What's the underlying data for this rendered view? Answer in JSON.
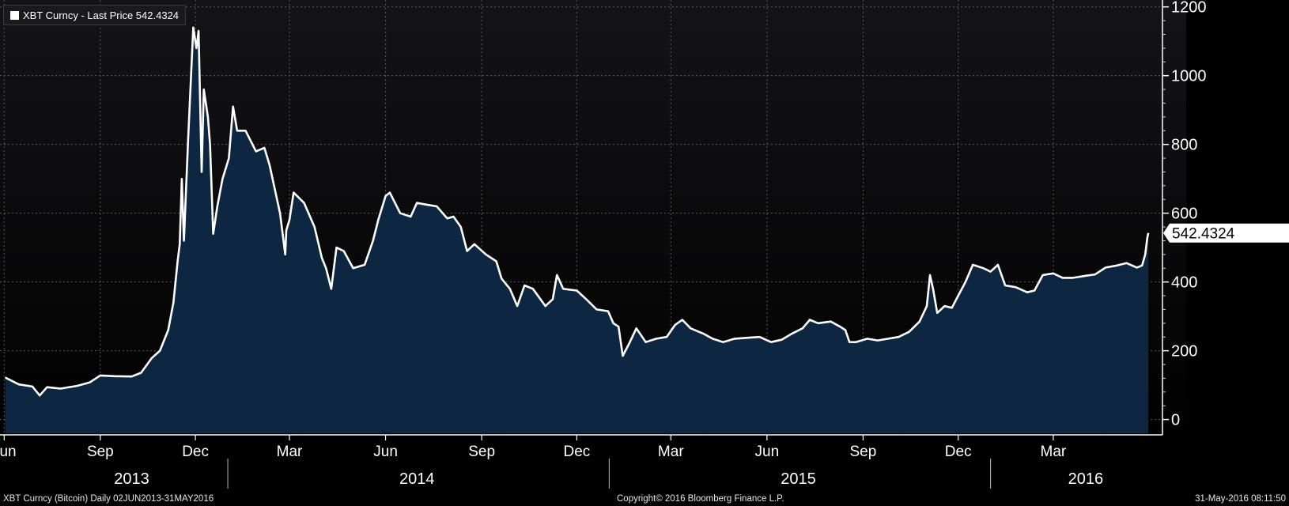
{
  "legend": {
    "label": "XBT Curncy - Last Price 542.4324",
    "swatch_color": "#ffffff"
  },
  "footer": {
    "left": "XBT Curncy (Bitcoin)  Daily 02JUN2013-31MAY2016",
    "center": "Copyright© 2016 Bloomberg Finance L.P.",
    "right": "31-May-2016 08:11:50"
  },
  "colors": {
    "background_top": "#141417",
    "background_bottom": "#000000",
    "area_fill": "#0d2742",
    "line": "#ffffff",
    "grid": "#5a5a5a"
  },
  "chart_data": {
    "type": "area",
    "series": [
      {
        "name": "XBT Curncy - Last Price",
        "last_value_label": "542.4324",
        "points": [
          [
            "2013-06-02",
            122
          ],
          [
            "2013-06-15",
            102
          ],
          [
            "2013-06-28",
            96
          ],
          [
            "2013-07-05",
            70
          ],
          [
            "2013-07-12",
            94
          ],
          [
            "2013-07-25",
            90
          ],
          [
            "2013-08-10",
            98
          ],
          [
            "2013-08-22",
            108
          ],
          [
            "2013-09-01",
            128
          ],
          [
            "2013-09-15",
            126
          ],
          [
            "2013-10-01",
            125
          ],
          [
            "2013-10-10",
            136
          ],
          [
            "2013-10-20",
            178
          ],
          [
            "2013-10-28",
            200
          ],
          [
            "2013-11-05",
            260
          ],
          [
            "2013-11-10",
            340
          ],
          [
            "2013-11-14",
            460
          ],
          [
            "2013-11-16",
            510
          ],
          [
            "2013-11-18",
            700
          ],
          [
            "2013-11-20",
            520
          ],
          [
            "2013-11-24",
            810
          ],
          [
            "2013-11-29",
            1140
          ],
          [
            "2013-12-02",
            1080
          ],
          [
            "2013-12-04",
            1130
          ],
          [
            "2013-12-07",
            720
          ],
          [
            "2013-12-09",
            960
          ],
          [
            "2013-12-13",
            880
          ],
          [
            "2013-12-15",
            800
          ],
          [
            "2013-12-18",
            540
          ],
          [
            "2013-12-22",
            620
          ],
          [
            "2013-12-27",
            700
          ],
          [
            "2014-01-02",
            760
          ],
          [
            "2014-01-06",
            910
          ],
          [
            "2014-01-10",
            840
          ],
          [
            "2014-01-18",
            840
          ],
          [
            "2014-01-28",
            780
          ],
          [
            "2014-02-05",
            790
          ],
          [
            "2014-02-10",
            740
          ],
          [
            "2014-02-15",
            670
          ],
          [
            "2014-02-20",
            600
          ],
          [
            "2014-02-25",
            480
          ],
          [
            "2014-02-26",
            550
          ],
          [
            "2014-03-01",
            580
          ],
          [
            "2014-03-05",
            660
          ],
          [
            "2014-03-15",
            630
          ],
          [
            "2014-03-25",
            560
          ],
          [
            "2014-04-01",
            470
          ],
          [
            "2014-04-05",
            440
          ],
          [
            "2014-04-10",
            380
          ],
          [
            "2014-04-15",
            500
          ],
          [
            "2014-04-22",
            490
          ],
          [
            "2014-05-01",
            440
          ],
          [
            "2014-05-12",
            450
          ],
          [
            "2014-05-20",
            520
          ],
          [
            "2014-05-25",
            580
          ],
          [
            "2014-06-01",
            650
          ],
          [
            "2014-06-05",
            660
          ],
          [
            "2014-06-15",
            600
          ],
          [
            "2014-06-25",
            590
          ],
          [
            "2014-07-01",
            630
          ],
          [
            "2014-07-10",
            625
          ],
          [
            "2014-07-20",
            620
          ],
          [
            "2014-07-30",
            585
          ],
          [
            "2014-08-05",
            590
          ],
          [
            "2014-08-12",
            560
          ],
          [
            "2014-08-18",
            490
          ],
          [
            "2014-08-25",
            510
          ],
          [
            "2014-09-05",
            480
          ],
          [
            "2014-09-15",
            460
          ],
          [
            "2014-09-20",
            410
          ],
          [
            "2014-09-28",
            380
          ],
          [
            "2014-10-05",
            330
          ],
          [
            "2014-10-12",
            390
          ],
          [
            "2014-10-20",
            380
          ],
          [
            "2014-11-01",
            330
          ],
          [
            "2014-11-08",
            350
          ],
          [
            "2014-11-12",
            420
          ],
          [
            "2014-11-18",
            380
          ],
          [
            "2014-12-01",
            375
          ],
          [
            "2014-12-10",
            350
          ],
          [
            "2014-12-20",
            320
          ],
          [
            "2014-12-31",
            315
          ],
          [
            "2015-01-05",
            280
          ],
          [
            "2015-01-10",
            270
          ],
          [
            "2015-01-14",
            185
          ],
          [
            "2015-01-20",
            220
          ],
          [
            "2015-01-27",
            265
          ],
          [
            "2015-02-05",
            225
          ],
          [
            "2015-02-15",
            235
          ],
          [
            "2015-02-25",
            240
          ],
          [
            "2015-03-05",
            275
          ],
          [
            "2015-03-12",
            290
          ],
          [
            "2015-03-20",
            265
          ],
          [
            "2015-04-01",
            250
          ],
          [
            "2015-04-10",
            235
          ],
          [
            "2015-04-20",
            225
          ],
          [
            "2015-05-01",
            235
          ],
          [
            "2015-05-15",
            238
          ],
          [
            "2015-05-25",
            240
          ],
          [
            "2015-06-05",
            225
          ],
          [
            "2015-06-15",
            232
          ],
          [
            "2015-06-25",
            250
          ],
          [
            "2015-07-05",
            265
          ],
          [
            "2015-07-12",
            290
          ],
          [
            "2015-07-20",
            280
          ],
          [
            "2015-08-01",
            285
          ],
          [
            "2015-08-10",
            270
          ],
          [
            "2015-08-15",
            260
          ],
          [
            "2015-08-19",
            225
          ],
          [
            "2015-08-25",
            225
          ],
          [
            "2015-09-05",
            235
          ],
          [
            "2015-09-15",
            230
          ],
          [
            "2015-09-25",
            235
          ],
          [
            "2015-10-05",
            240
          ],
          [
            "2015-10-15",
            255
          ],
          [
            "2015-10-25",
            285
          ],
          [
            "2015-11-01",
            330
          ],
          [
            "2015-11-04",
            420
          ],
          [
            "2015-11-07",
            380
          ],
          [
            "2015-11-11",
            310
          ],
          [
            "2015-11-18",
            330
          ],
          [
            "2015-11-25",
            325
          ],
          [
            "2015-12-01",
            360
          ],
          [
            "2015-12-08",
            400
          ],
          [
            "2015-12-15",
            450
          ],
          [
            "2015-12-25",
            440
          ],
          [
            "2016-01-01",
            430
          ],
          [
            "2016-01-08",
            450
          ],
          [
            "2016-01-15",
            390
          ],
          [
            "2016-01-25",
            385
          ],
          [
            "2016-02-05",
            370
          ],
          [
            "2016-02-12",
            375
          ],
          [
            "2016-02-20",
            420
          ],
          [
            "2016-03-01",
            425
          ],
          [
            "2016-03-10",
            412
          ],
          [
            "2016-03-20",
            412
          ],
          [
            "2016-04-01",
            418
          ],
          [
            "2016-04-10",
            422
          ],
          [
            "2016-04-20",
            442
          ],
          [
            "2016-05-01",
            448
          ],
          [
            "2016-05-10",
            455
          ],
          [
            "2016-05-20",
            442
          ],
          [
            "2016-05-25",
            448
          ],
          [
            "2016-05-28",
            480
          ],
          [
            "2016-05-30",
            528
          ],
          [
            "2016-05-31",
            542.4324
          ]
        ]
      }
    ],
    "x_range": [
      "2013-05-28",
      "2016-06-12"
    ],
    "ylim": [
      -40,
      1220
    ],
    "y_ticks": [
      0,
      200,
      400,
      600,
      800,
      1000,
      1200
    ],
    "y_axis_position": "right",
    "x_month_ticks": [
      {
        "date": "2013-06-01",
        "label": "Jun"
      },
      {
        "date": "2013-09-01",
        "label": "Sep"
      },
      {
        "date": "2013-12-01",
        "label": "Dec"
      },
      {
        "date": "2014-03-01",
        "label": "Mar"
      },
      {
        "date": "2014-06-01",
        "label": "Jun"
      },
      {
        "date": "2014-09-01",
        "label": "Sep"
      },
      {
        "date": "2014-12-01",
        "label": "Dec"
      },
      {
        "date": "2015-03-01",
        "label": "Mar"
      },
      {
        "date": "2015-06-01",
        "label": "Jun"
      },
      {
        "date": "2015-09-01",
        "label": "Sep"
      },
      {
        "date": "2015-12-01",
        "label": "Dec"
      },
      {
        "date": "2016-03-01",
        "label": "Mar"
      }
    ],
    "x_year_labels": [
      {
        "date": "2013-10-01",
        "label": "2013"
      },
      {
        "date": "2014-07-01",
        "label": "2014"
      },
      {
        "date": "2015-07-01",
        "label": "2015"
      },
      {
        "date": "2016-04-01",
        "label": "2016"
      }
    ],
    "x_year_dividers": [
      "2014-01-01",
      "2015-01-01",
      "2016-01-01"
    ],
    "grid": true,
    "legend_position": "top-left"
  }
}
